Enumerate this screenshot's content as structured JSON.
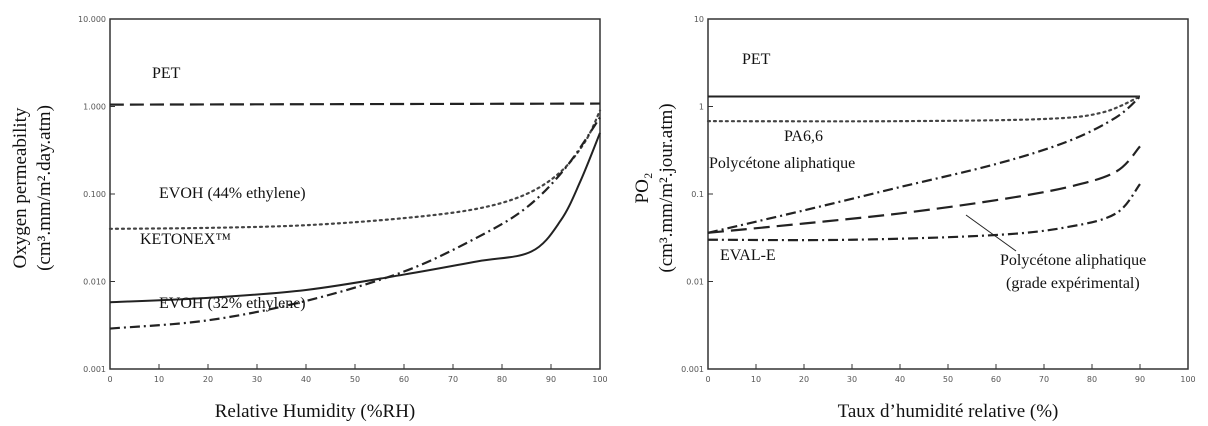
{
  "chart_data": [
    {
      "type": "line",
      "xlabel": "Relative Humidity (%RH)",
      "ylabel_line1": "Oxygen permeability",
      "ylabel_line2": "(cm³.mm/m².day.atm)",
      "xlim": [
        0,
        100
      ],
      "ylim": [
        0.001,
        10
      ],
      "yscale": "log",
      "grid": false,
      "xticks": [
        "0",
        "10",
        "20",
        "30",
        "40",
        "50",
        "60",
        "70",
        "80",
        "90",
        "100"
      ],
      "yticks": [
        "0.001",
        "0.010",
        "0.100",
        "1.000",
        "10.000"
      ],
      "ytick_values": [
        0.001,
        0.01,
        0.1,
        1,
        10
      ],
      "series": [
        {
          "name": "PET",
          "label": "PET",
          "style": "dashed",
          "points": [
            [
              0,
              1.05
            ],
            [
              100,
              1.08
            ]
          ]
        },
        {
          "name": "EVOH (44% ethylene)",
          "label": "EVOH (44% ethylene)",
          "style": "dotted",
          "points": [
            [
              0,
              0.04
            ],
            [
              20,
              0.041
            ],
            [
              40,
              0.044
            ],
            [
              60,
              0.053
            ],
            [
              75,
              0.068
            ],
            [
              85,
              0.1
            ],
            [
              92,
              0.18
            ],
            [
              97,
              0.4
            ],
            [
              100,
              0.9
            ]
          ]
        },
        {
          "name": "KETONEX™",
          "label": "KETONEX™",
          "style": "solid",
          "points": [
            [
              0,
              0.0058
            ],
            [
              20,
              0.0065
            ],
            [
              40,
              0.008
            ],
            [
              60,
              0.012
            ],
            [
              75,
              0.017
            ],
            [
              86,
              0.022
            ],
            [
              92,
              0.05
            ],
            [
              96,
              0.14
            ],
            [
              100,
              0.5
            ]
          ]
        },
        {
          "name": "EVOH (32% ethylene)",
          "label": "EVOH (32% ethylene)",
          "style": "dashdot",
          "points": [
            [
              0,
              0.0029
            ],
            [
              20,
              0.0036
            ],
            [
              40,
              0.006
            ],
            [
              60,
              0.013
            ],
            [
              75,
              0.032
            ],
            [
              85,
              0.07
            ],
            [
              93,
              0.2
            ],
            [
              100,
              0.75
            ]
          ]
        }
      ]
    },
    {
      "type": "line",
      "xlabel": "Taux d’humidité relative (%)",
      "ylabel_line1": "PO₂",
      "ylabel_line2": "(cm³.mm/m².jour.atm)",
      "xlim": [
        0,
        100
      ],
      "ylim": [
        0.001,
        10
      ],
      "yscale": "log",
      "grid": false,
      "xticks": [
        "0",
        "10",
        "20",
        "30",
        "40",
        "50",
        "60",
        "70",
        "80",
        "90",
        "100"
      ],
      "yticks": [
        "0.001",
        "0.01",
        "0.1",
        "1",
        "10"
      ],
      "ytick_values": [
        0.001,
        0.01,
        0.1,
        1,
        10
      ],
      "series": [
        {
          "name": "PET",
          "label": "PET",
          "style": "solid",
          "points": [
            [
              0,
              1.3
            ],
            [
              90,
              1.3
            ]
          ]
        },
        {
          "name": "PA6,6",
          "label": "PA6,6",
          "style": "dotted",
          "points": [
            [
              0,
              0.68
            ],
            [
              40,
              0.68
            ],
            [
              70,
              0.72
            ],
            [
              82,
              0.85
            ],
            [
              90,
              1.3
            ]
          ]
        },
        {
          "name": "Polycétone aliphatique",
          "label": "Polycétone aliphatique",
          "style": "dashdot",
          "points": [
            [
              0,
              0.036
            ],
            [
              20,
              0.065
            ],
            [
              40,
              0.12
            ],
            [
              60,
              0.22
            ],
            [
              75,
              0.4
            ],
            [
              85,
              0.75
            ],
            [
              90,
              1.3
            ]
          ]
        },
        {
          "name": "Polycétone aliphatique (grade expérimental)",
          "label_line1": "Polycétone aliphatique",
          "label_line2": "(grade expérimental)",
          "style": "longdash",
          "points": [
            [
              0,
              0.036
            ],
            [
              20,
              0.046
            ],
            [
              40,
              0.06
            ],
            [
              60,
              0.085
            ],
            [
              75,
              0.12
            ],
            [
              85,
              0.18
            ],
            [
              90,
              0.35
            ]
          ]
        },
        {
          "name": "EVAL-E",
          "label": "EVAL-E",
          "style": "dashdot",
          "points": [
            [
              0,
              0.03
            ],
            [
              30,
              0.03
            ],
            [
              60,
              0.034
            ],
            [
              75,
              0.042
            ],
            [
              85,
              0.06
            ],
            [
              90,
              0.13
            ]
          ]
        }
      ]
    }
  ]
}
